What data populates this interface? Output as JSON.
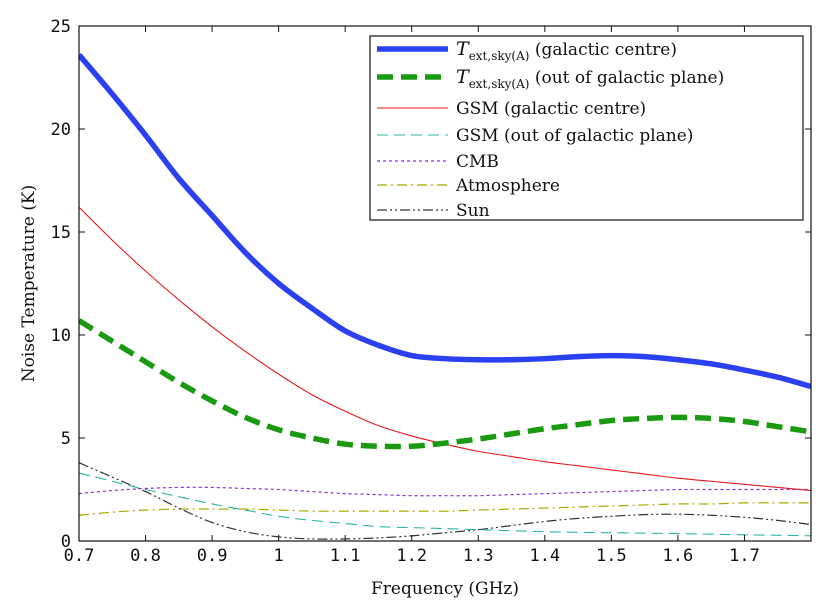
{
  "chart_data": {
    "type": "line",
    "title": "",
    "xlabel": "Frequency (GHz)",
    "ylabel": "Noise Temperature (K)",
    "xlim": [
      0.7,
      1.8
    ],
    "ylim": [
      0,
      25
    ],
    "xticks": [
      "0.7",
      "0.8",
      "0.9",
      "1",
      "1.1",
      "1.2",
      "1.3",
      "1.4",
      "1.5",
      "1.6",
      "1.7"
    ],
    "yticks": [
      "0",
      "5",
      "10",
      "15",
      "20",
      "25"
    ],
    "xtick_values": [
      0.7,
      0.8,
      0.9,
      1.0,
      1.1,
      1.2,
      1.3,
      1.4,
      1.5,
      1.6,
      1.7
    ],
    "ytick_values": [
      0,
      5,
      10,
      15,
      20,
      25
    ],
    "grid": false,
    "legend_position": "top-right",
    "series": [
      {
        "name": "T_ext,sky(A) (galactic centre)",
        "legend_main": "T",
        "legend_sub": "ext,sky(A)",
        "legend_suffix": " (galactic centre)",
        "color": "#2b40f0",
        "style": "solid-thick",
        "x": [
          0.7,
          0.75,
          0.8,
          0.85,
          0.9,
          0.95,
          1.0,
          1.05,
          1.1,
          1.15,
          1.2,
          1.25,
          1.3,
          1.35,
          1.4,
          1.45,
          1.5,
          1.55,
          1.6,
          1.65,
          1.7,
          1.75,
          1.8
        ],
        "y": [
          23.6,
          21.7,
          19.7,
          17.6,
          15.8,
          14.0,
          12.5,
          11.3,
          10.2,
          9.5,
          9.0,
          8.85,
          8.8,
          8.8,
          8.85,
          8.95,
          9.0,
          8.95,
          8.8,
          8.6,
          8.3,
          7.95,
          7.5
        ]
      },
      {
        "name": "T_ext,sky(A) (out of galactic plane)",
        "legend_main": "T",
        "legend_sub": "ext,sky(A)",
        "legend_suffix": " (out of galactic plane)",
        "color": "#1a9a10",
        "style": "dashed-thick",
        "x": [
          0.7,
          0.75,
          0.8,
          0.85,
          0.9,
          0.95,
          1.0,
          1.05,
          1.1,
          1.15,
          1.2,
          1.25,
          1.3,
          1.35,
          1.4,
          1.45,
          1.5,
          1.55,
          1.6,
          1.65,
          1.7,
          1.75,
          1.8
        ],
        "y": [
          10.7,
          9.7,
          8.7,
          7.7,
          6.8,
          6.0,
          5.4,
          5.0,
          4.7,
          4.6,
          4.6,
          4.75,
          4.95,
          5.2,
          5.45,
          5.65,
          5.85,
          5.95,
          6.0,
          5.95,
          5.8,
          5.55,
          5.3
        ]
      },
      {
        "name": "GSM (galactic centre)",
        "legend_label": "GSM (galactic centre)",
        "color": "#e41a1a",
        "style": "solid-thin",
        "x": [
          0.7,
          0.75,
          0.8,
          0.85,
          0.9,
          0.95,
          1.0,
          1.05,
          1.1,
          1.15,
          1.2,
          1.25,
          1.3,
          1.35,
          1.4,
          1.45,
          1.5,
          1.55,
          1.6,
          1.65,
          1.7,
          1.75,
          1.8
        ],
        "y": [
          16.2,
          14.6,
          13.1,
          11.7,
          10.4,
          9.2,
          8.1,
          7.1,
          6.3,
          5.6,
          5.1,
          4.7,
          4.35,
          4.1,
          3.85,
          3.65,
          3.45,
          3.25,
          3.05,
          2.9,
          2.75,
          2.6,
          2.45
        ]
      },
      {
        "name": "GSM (out of galactic plane)",
        "legend_label": "GSM (out of galactic plane)",
        "color": "#2ab5a5",
        "style": "dashed-thin",
        "x": [
          0.7,
          0.75,
          0.8,
          0.85,
          0.9,
          0.95,
          1.0,
          1.05,
          1.1,
          1.15,
          1.2,
          1.25,
          1.3,
          1.35,
          1.4,
          1.45,
          1.5,
          1.55,
          1.6,
          1.65,
          1.7,
          1.75,
          1.8
        ],
        "y": [
          3.3,
          2.9,
          2.5,
          2.15,
          1.8,
          1.5,
          1.2,
          1.0,
          0.85,
          0.7,
          0.65,
          0.6,
          0.55,
          0.5,
          0.45,
          0.42,
          0.4,
          0.38,
          0.36,
          0.33,
          0.3,
          0.28,
          0.25
        ]
      },
      {
        "name": "CMB",
        "legend_label": "CMB",
        "color": "#8a2be2",
        "style": "dotted",
        "x": [
          0.7,
          0.75,
          0.8,
          0.85,
          0.9,
          0.95,
          1.0,
          1.05,
          1.1,
          1.15,
          1.2,
          1.25,
          1.3,
          1.35,
          1.4,
          1.45,
          1.5,
          1.55,
          1.6,
          1.65,
          1.7,
          1.75,
          1.8
        ],
        "y": [
          2.3,
          2.45,
          2.55,
          2.6,
          2.6,
          2.55,
          2.5,
          2.4,
          2.3,
          2.25,
          2.2,
          2.2,
          2.2,
          2.25,
          2.3,
          2.35,
          2.4,
          2.45,
          2.5,
          2.5,
          2.5,
          2.5,
          2.5
        ]
      },
      {
        "name": "Atmosphere",
        "legend_label": "Atmosphere",
        "color": "#a8a800",
        "style": "dashdot",
        "x": [
          0.7,
          0.75,
          0.8,
          0.85,
          0.9,
          0.95,
          1.0,
          1.05,
          1.1,
          1.15,
          1.2,
          1.25,
          1.3,
          1.35,
          1.4,
          1.45,
          1.5,
          1.55,
          1.6,
          1.65,
          1.7,
          1.75,
          1.8
        ],
        "y": [
          1.25,
          1.4,
          1.5,
          1.55,
          1.55,
          1.55,
          1.5,
          1.45,
          1.45,
          1.45,
          1.45,
          1.45,
          1.5,
          1.55,
          1.6,
          1.65,
          1.7,
          1.75,
          1.8,
          1.8,
          1.85,
          1.85,
          1.85
        ]
      },
      {
        "name": "Sun",
        "legend_label": "Sun",
        "color": "#333333",
        "style": "dashdotdot",
        "x": [
          0.7,
          0.75,
          0.8,
          0.85,
          0.9,
          0.95,
          1.0,
          1.05,
          1.1,
          1.15,
          1.2,
          1.25,
          1.3,
          1.35,
          1.4,
          1.45,
          1.5,
          1.55,
          1.6,
          1.65,
          1.7,
          1.75,
          1.8
        ],
        "y": [
          3.8,
          3.1,
          2.4,
          1.6,
          0.9,
          0.45,
          0.2,
          0.1,
          0.1,
          0.15,
          0.25,
          0.4,
          0.55,
          0.75,
          0.95,
          1.1,
          1.2,
          1.28,
          1.3,
          1.25,
          1.15,
          1.0,
          0.8
        ]
      }
    ]
  }
}
